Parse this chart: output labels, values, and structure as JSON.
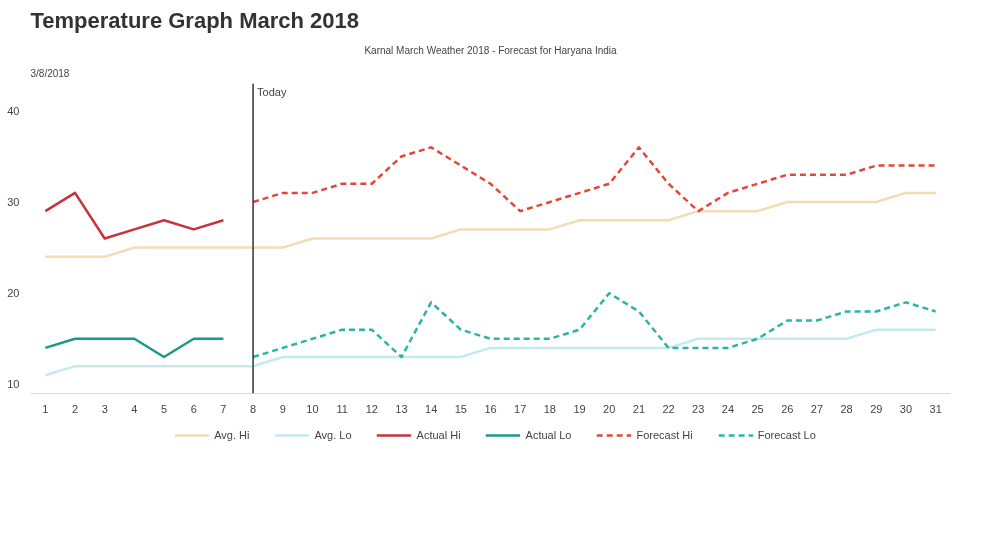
{
  "chart_data": {
    "type": "line",
    "title": "Temperature Graph March 2018",
    "annotations": [
      "3/8/2018",
      "Karnal March Weather 2018 - Forecast for Haryana India"
    ],
    "xlim": [
      0.5,
      31.5
    ],
    "xticks": [
      1,
      2,
      3,
      4,
      5,
      6,
      7,
      8,
      9,
      10,
      11,
      12,
      13,
      14,
      15,
      16,
      17,
      18,
      19,
      20,
      21,
      22,
      23,
      24,
      25,
      26,
      27,
      28,
      29,
      30,
      31
    ],
    "ylim": [
      9,
      43
    ],
    "yticks": [
      10,
      20,
      30,
      40
    ],
    "grid": false,
    "legend": "bottom",
    "ref_lines": [
      {
        "axis": "x",
        "value": 8,
        "label": "Today",
        "color": "#333333"
      }
    ],
    "series": [
      {
        "name": "Avg. Hi",
        "color": "#f2dcb6",
        "line_style": "solid",
        "x": [
          1,
          2,
          3,
          4,
          5,
          6,
          7,
          8,
          9,
          10,
          11,
          12,
          13,
          14,
          15,
          16,
          17,
          18,
          19,
          20,
          21,
          22,
          23,
          24,
          25,
          26,
          27,
          28,
          29,
          30,
          31
        ],
        "values": [
          24,
          24,
          24,
          25,
          25,
          25,
          25,
          25,
          25,
          26,
          26,
          26,
          26,
          26,
          27,
          27,
          27,
          27,
          28,
          28,
          28,
          28,
          29,
          29,
          29,
          30,
          30,
          30,
          30,
          31,
          31
        ]
      },
      {
        "name": "Avg. Lo",
        "color": "#c4eaf0",
        "line_style": "solid",
        "x": [
          1,
          2,
          3,
          4,
          5,
          6,
          7,
          8,
          9,
          10,
          11,
          12,
          13,
          14,
          15,
          16,
          17,
          18,
          19,
          20,
          21,
          22,
          23,
          24,
          25,
          26,
          27,
          28,
          29,
          30,
          31
        ],
        "values": [
          11,
          12,
          12,
          12,
          12,
          12,
          12,
          12,
          13,
          13,
          13,
          13,
          13,
          13,
          13,
          14,
          14,
          14,
          14,
          14,
          14,
          14,
          15,
          15,
          15,
          15,
          15,
          15,
          16,
          16,
          16
        ]
      },
      {
        "name": "Actual Hi",
        "color": "#c8323c",
        "line_style": "solid",
        "x": [
          1,
          2,
          3,
          4,
          5,
          6,
          7
        ],
        "values": [
          29,
          31,
          26,
          27,
          28,
          27,
          28
        ]
      },
      {
        "name": "Actual Lo",
        "color": "#1a9a8a",
        "line_style": "solid",
        "x": [
          1,
          2,
          3,
          4,
          5,
          6,
          7
        ],
        "values": [
          14,
          15,
          15,
          15,
          13,
          15,
          15
        ]
      },
      {
        "name": "Forecast Hi",
        "color": "#e0493a",
        "line_style": "dashed",
        "x": [
          8,
          9,
          10,
          11,
          12,
          13,
          14,
          15,
          16,
          17,
          18,
          19,
          20,
          21,
          22,
          23,
          24,
          25,
          26,
          27,
          28,
          29,
          30,
          31
        ],
        "values": [
          30,
          31,
          31,
          32,
          32,
          35,
          36,
          34,
          32,
          29,
          30,
          31,
          32,
          36,
          32,
          29,
          31,
          32,
          33,
          33,
          33,
          34,
          34,
          34
        ]
      },
      {
        "name": "Forecast Lo",
        "color": "#2bb5a5",
        "line_style": "dashed",
        "x": [
          8,
          9,
          10,
          11,
          12,
          13,
          14,
          15,
          16,
          17,
          18,
          19,
          20,
          21,
          22,
          23,
          24,
          25,
          26,
          27,
          28,
          29,
          30,
          31
        ],
        "values": [
          13,
          14,
          15,
          16,
          16,
          13,
          19,
          16,
          15,
          15,
          15,
          16,
          20,
          18,
          14,
          14,
          14,
          15,
          17,
          17,
          18,
          18,
          19,
          18
        ]
      }
    ]
  }
}
